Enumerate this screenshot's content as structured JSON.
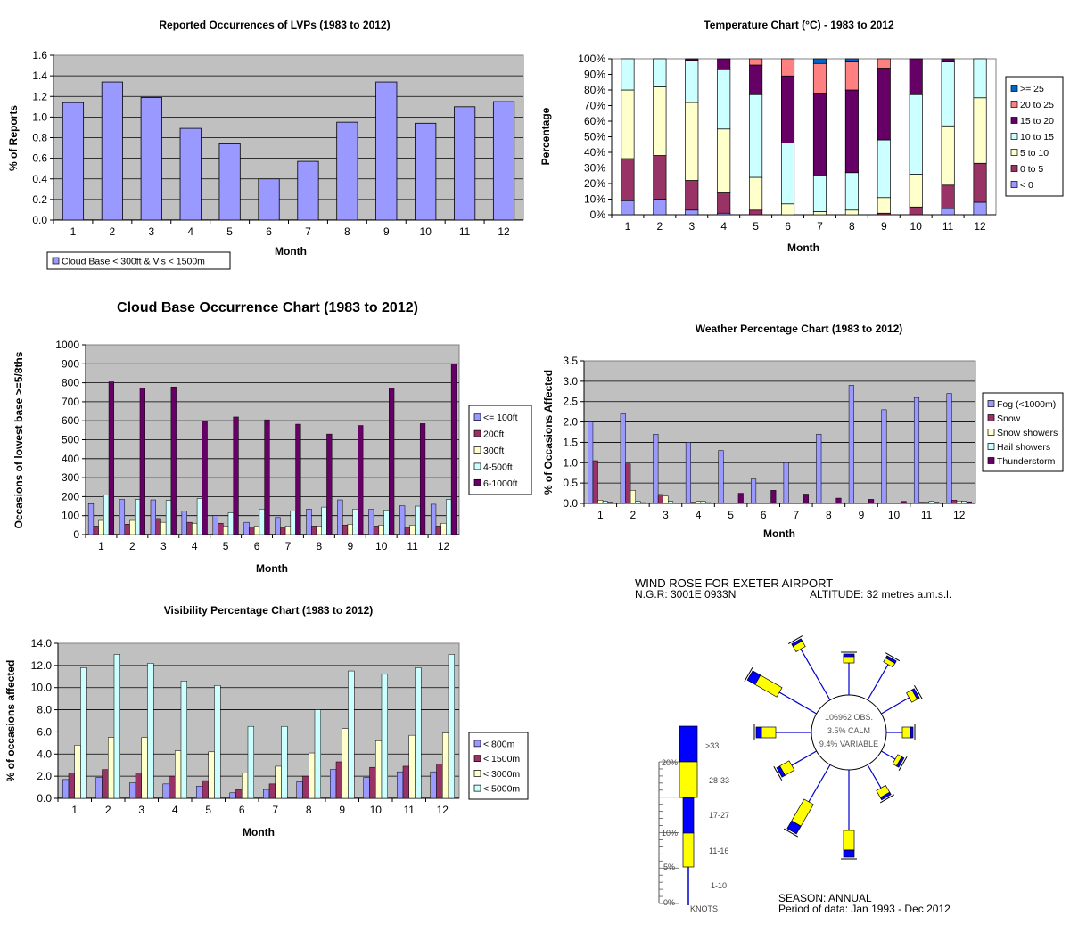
{
  "chart_data": [
    {
      "type": "bar",
      "title": "Reported Occurrences of LVPs (1983 to 2012)",
      "xlabel": "Month",
      "ylabel": "% of Reports",
      "categories": [
        "1",
        "2",
        "3",
        "4",
        "5",
        "6",
        "7",
        "8",
        "9",
        "10",
        "11",
        "12"
      ],
      "ylim": [
        0,
        1.6
      ],
      "yticks": [
        "0.0",
        "0.2",
        "0.4",
        "0.6",
        "0.8",
        "1.0",
        "1.2",
        "1.4",
        "1.6"
      ],
      "grid": true,
      "legend": "bottom-left",
      "series": [
        {
          "name": "Cloud Base < 300ft & Vis < 1500m",
          "color": "#9999ff",
          "values": [
            1.14,
            1.34,
            1.19,
            0.89,
            0.74,
            0.4,
            0.57,
            0.95,
            1.34,
            0.94,
            1.1,
            1.15
          ]
        }
      ]
    },
    {
      "type": "bar",
      "stacked": true,
      "title": "Temperature Chart (°C) - 1983 to 2012",
      "xlabel": "Month",
      "ylabel": "Percentage",
      "categories": [
        "1",
        "2",
        "3",
        "4",
        "5",
        "6",
        "7",
        "8",
        "9",
        "10",
        "11",
        "12"
      ],
      "ylim": [
        0,
        100
      ],
      "yticks": [
        "0%",
        "10%",
        "20%",
        "30%",
        "40%",
        "50%",
        "60%",
        "70%",
        "80%",
        "90%",
        "100%"
      ],
      "legend": "right",
      "series": [
        {
          "name": "< 0",
          "color": "#9999ff",
          "values": [
            9,
            10,
            3,
            1,
            0,
            0,
            0,
            0,
            0,
            0,
            4,
            8
          ]
        },
        {
          "name": "0 to 5",
          "color": "#993366",
          "values": [
            27,
            28,
            19,
            13,
            3,
            0,
            0,
            0,
            1,
            5,
            15,
            25
          ]
        },
        {
          "name": "5 to 10",
          "color": "#ffffcc",
          "values": [
            44,
            44,
            50,
            41,
            21,
            7,
            2,
            3,
            10,
            21,
            38,
            42
          ]
        },
        {
          "name": "10 to 15",
          "color": "#ccffff",
          "values": [
            20,
            18,
            27,
            38,
            53,
            39,
            23,
            24,
            37,
            51,
            41,
            25
          ]
        },
        {
          "name": "15 to 20",
          "color": "#660066",
          "values": [
            0,
            0,
            1,
            7,
            19,
            43,
            53,
            53,
            46,
            23,
            2,
            0
          ]
        },
        {
          "name": "20 to 25",
          "color": "#ff8080",
          "values": [
            0,
            0,
            0,
            0,
            4,
            11,
            19,
            18,
            6,
            0,
            0,
            0
          ]
        },
        {
          "name": ">= 25",
          "color": "#0066cc",
          "values": [
            0,
            0,
            0,
            0,
            0,
            0,
            3,
            2,
            0,
            0,
            0,
            0
          ]
        }
      ]
    },
    {
      "type": "bar",
      "title": "Cloud Base Occurrence Chart (1983 to 2012)",
      "xlabel": "Month",
      "ylabel": "Occasions of lowest base >=5/8ths",
      "categories": [
        "1",
        "2",
        "3",
        "4",
        "5",
        "6",
        "7",
        "8",
        "9",
        "10",
        "11",
        "12"
      ],
      "ylim": [
        0,
        1000
      ],
      "yticks": [
        "0",
        "100",
        "200",
        "300",
        "400",
        "500",
        "600",
        "700",
        "800",
        "900",
        "1000"
      ],
      "grid": true,
      "legend": "right",
      "series": [
        {
          "name": "<= 100ft",
          "color": "#9999ff",
          "values": [
            163,
            185,
            183,
            125,
            100,
            65,
            90,
            135,
            183,
            133,
            152,
            160
          ]
        },
        {
          "name": "200ft",
          "color": "#993366",
          "values": [
            45,
            55,
            85,
            65,
            60,
            40,
            35,
            45,
            50,
            45,
            35,
            45
          ]
        },
        {
          "name": "300ft",
          "color": "#ffffcc",
          "values": [
            75,
            75,
            65,
            60,
            45,
            45,
            45,
            45,
            55,
            50,
            50,
            60
          ]
        },
        {
          "name": "4-500ft",
          "color": "#ccffff",
          "values": [
            210,
            185,
            180,
            190,
            115,
            135,
            125,
            145,
            135,
            130,
            150,
            185
          ]
        },
        {
          "name": "6-1000ft",
          "color": "#660066",
          "values": [
            805,
            772,
            778,
            600,
            620,
            605,
            582,
            530,
            575,
            773,
            585,
            900
          ]
        }
      ]
    },
    {
      "type": "bar",
      "title": "Weather Percentage Chart (1983 to 2012)",
      "xlabel": "Month",
      "ylabel": "% of Occasions Affected",
      "categories": [
        "1",
        "2",
        "3",
        "4",
        "5",
        "6",
        "7",
        "8",
        "9",
        "10",
        "11",
        "12"
      ],
      "ylim": [
        0,
        3.5
      ],
      "yticks": [
        "0.0",
        "0.5",
        "1.0",
        "1.5",
        "2.0",
        "2.5",
        "3.0",
        "3.5"
      ],
      "grid": true,
      "legend": "right",
      "series": [
        {
          "name": "Fog (<1000m)",
          "color": "#9999ff",
          "values": [
            2.0,
            2.2,
            1.7,
            1.5,
            1.3,
            0.6,
            1.0,
            1.7,
            2.9,
            2.3,
            2.6,
            2.7
          ]
        },
        {
          "name": "Snow",
          "color": "#993366",
          "values": [
            1.05,
            0.97,
            0.22,
            0.03,
            0,
            0,
            0,
            0,
            0,
            0,
            0.03,
            0.08
          ]
        },
        {
          "name": "Snow showers",
          "color": "#ffffcc",
          "values": [
            0.08,
            0.32,
            0.18,
            0.05,
            0,
            0,
            0,
            0,
            0,
            0,
            0.03,
            0.06
          ]
        },
        {
          "name": "Hail showers",
          "color": "#ccffff",
          "values": [
            0.05,
            0.05,
            0.05,
            0.05,
            0,
            0,
            0,
            0,
            0,
            0,
            0.05,
            0.05
          ]
        },
        {
          "name": "Thunderstorm",
          "color": "#660066",
          "values": [
            0.03,
            0.02,
            0.01,
            0.02,
            0.25,
            0.32,
            0.23,
            0.13,
            0.1,
            0.05,
            0.03,
            0.04
          ]
        }
      ]
    },
    {
      "type": "bar",
      "title": "Visibility Percentage Chart (1983 to 2012)",
      "xlabel": "Month",
      "ylabel": "% of occasions affected",
      "categories": [
        "1",
        "2",
        "3",
        "4",
        "5",
        "6",
        "7",
        "8",
        "9",
        "10",
        "11",
        "12"
      ],
      "ylim": [
        0,
        14
      ],
      "yticks": [
        "0.0",
        "2.0",
        "4.0",
        "6.0",
        "8.0",
        "10.0",
        "12.0",
        "14.0"
      ],
      "grid": true,
      "legend": "right",
      "series": [
        {
          "name": "< 800m",
          "color": "#9999ff",
          "values": [
            1.7,
            1.9,
            1.4,
            1.3,
            1.1,
            0.5,
            0.8,
            1.5,
            2.6,
            1.9,
            2.4,
            2.4
          ]
        },
        {
          "name": "< 1500m",
          "color": "#993366",
          "values": [
            2.3,
            2.6,
            2.3,
            2.0,
            1.6,
            0.8,
            1.3,
            2.0,
            3.3,
            2.8,
            2.9,
            3.1
          ]
        },
        {
          "name": "< 3000m",
          "color": "#ffffcc",
          "values": [
            4.8,
            5.5,
            5.5,
            4.3,
            4.2,
            2.3,
            2.9,
            4.1,
            6.3,
            5.2,
            5.7,
            5.9
          ]
        },
        {
          "name": "< 5000m",
          "color": "#ccffff",
          "values": [
            11.8,
            13.0,
            12.2,
            10.6,
            10.2,
            6.5,
            6.5,
            8.0,
            11.5,
            11.2,
            11.8,
            13.0
          ]
        }
      ]
    }
  ],
  "windrose": {
    "title": "WIND ROSE FOR EXETER AIRPORT",
    "ngr": "N.G.R: 3001E 0933N",
    "altitude": "ALTITUDE:  32 metres a.m.s.l.",
    "centre_obs": "106962 OBS.",
    "centre_calm": "3.5% CALM",
    "centre_variable": "9.4% VARIABLE",
    "season": "SEASON:  ANNUAL",
    "period": "Period of data: Jan 1993 - Dec 2012",
    "scale_labels": [
      "20%",
      "10%",
      "5%",
      "0%"
    ],
    "speed_bands": [
      ">33",
      "28-33",
      "17-27",
      "11-16",
      "1-10"
    ],
    "units": "KNOTS"
  }
}
